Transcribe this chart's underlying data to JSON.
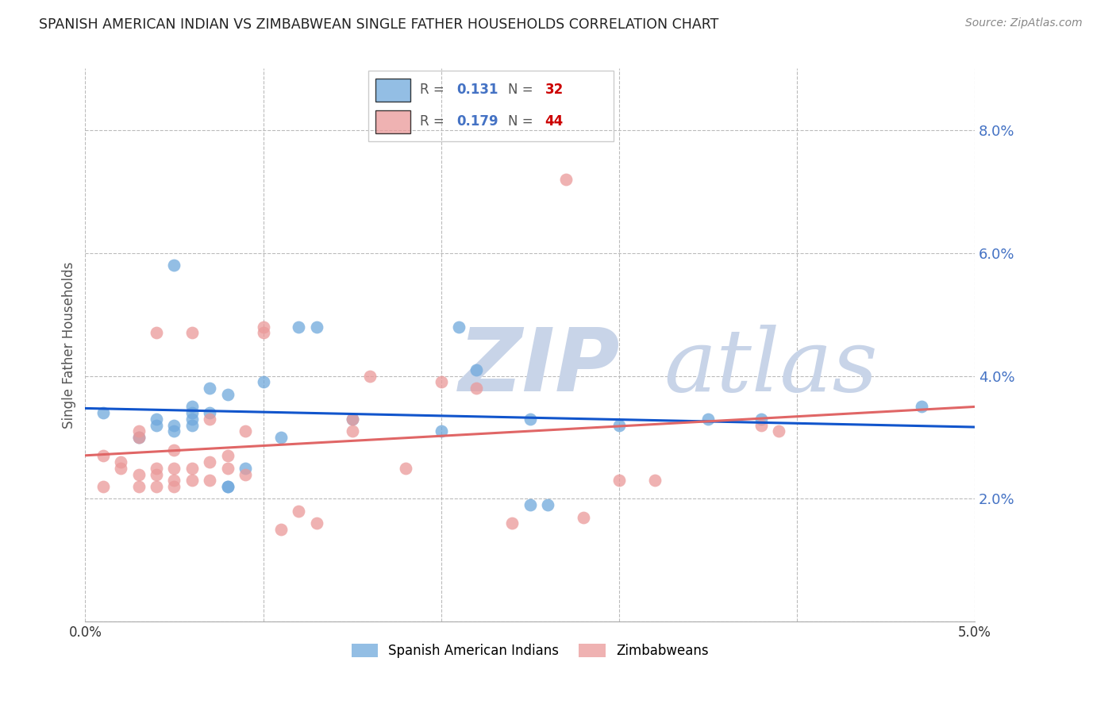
{
  "title": "SPANISH AMERICAN INDIAN VS ZIMBABWEAN SINGLE FATHER HOUSEHOLDS CORRELATION CHART",
  "source": "Source: ZipAtlas.com",
  "ylabel": "Single Father Households",
  "xlim": [
    0.0,
    0.05
  ],
  "ylim": [
    0.0,
    0.09
  ],
  "yticks": [
    0.0,
    0.02,
    0.04,
    0.06,
    0.08
  ],
  "ytick_labels": [
    "",
    "2.0%",
    "4.0%",
    "6.0%",
    "8.0%"
  ],
  "xticks": [
    0.0,
    0.01,
    0.02,
    0.03,
    0.04,
    0.05
  ],
  "xtick_labels": [
    "0.0%",
    "",
    "",
    "",
    "",
    "5.0%"
  ],
  "blue_R": 0.131,
  "blue_N": 32,
  "pink_R": 0.179,
  "pink_N": 44,
  "blue_color": "#6fa8dc",
  "pink_color": "#ea9999",
  "blue_line_color": "#1155cc",
  "pink_line_color": "#e06666",
  "watermark_zip": "ZIP",
  "watermark_atlas": "atlas",
  "watermark_color": "#c8d4e8",
  "legend_label_blue": "Spanish American Indians",
  "legend_label_pink": "Zimbabweans",
  "blue_x": [
    0.001,
    0.003,
    0.004,
    0.005,
    0.005,
    0.006,
    0.006,
    0.006,
    0.007,
    0.007,
    0.008,
    0.008,
    0.009,
    0.01,
    0.011,
    0.012,
    0.013,
    0.015,
    0.02,
    0.021,
    0.022,
    0.025,
    0.025,
    0.026,
    0.03,
    0.035,
    0.038,
    0.047,
    0.004,
    0.005,
    0.008,
    0.006
  ],
  "blue_y": [
    0.034,
    0.03,
    0.032,
    0.031,
    0.058,
    0.032,
    0.033,
    0.035,
    0.034,
    0.038,
    0.022,
    0.037,
    0.025,
    0.039,
    0.03,
    0.048,
    0.048,
    0.033,
    0.031,
    0.048,
    0.041,
    0.033,
    0.019,
    0.019,
    0.032,
    0.033,
    0.033,
    0.035,
    0.033,
    0.032,
    0.022,
    0.034
  ],
  "pink_x": [
    0.001,
    0.001,
    0.002,
    0.002,
    0.003,
    0.003,
    0.003,
    0.003,
    0.004,
    0.004,
    0.004,
    0.004,
    0.005,
    0.005,
    0.005,
    0.005,
    0.006,
    0.006,
    0.006,
    0.007,
    0.007,
    0.007,
    0.008,
    0.008,
    0.009,
    0.009,
    0.01,
    0.01,
    0.011,
    0.012,
    0.013,
    0.015,
    0.015,
    0.016,
    0.018,
    0.02,
    0.022,
    0.024,
    0.027,
    0.028,
    0.03,
    0.032,
    0.038,
    0.039
  ],
  "pink_y": [
    0.027,
    0.022,
    0.025,
    0.026,
    0.022,
    0.024,
    0.03,
    0.031,
    0.022,
    0.024,
    0.025,
    0.047,
    0.022,
    0.023,
    0.025,
    0.028,
    0.023,
    0.025,
    0.047,
    0.023,
    0.026,
    0.033,
    0.025,
    0.027,
    0.024,
    0.031,
    0.047,
    0.048,
    0.015,
    0.018,
    0.016,
    0.031,
    0.033,
    0.04,
    0.025,
    0.039,
    0.038,
    0.016,
    0.072,
    0.017,
    0.023,
    0.023,
    0.032,
    0.031
  ]
}
